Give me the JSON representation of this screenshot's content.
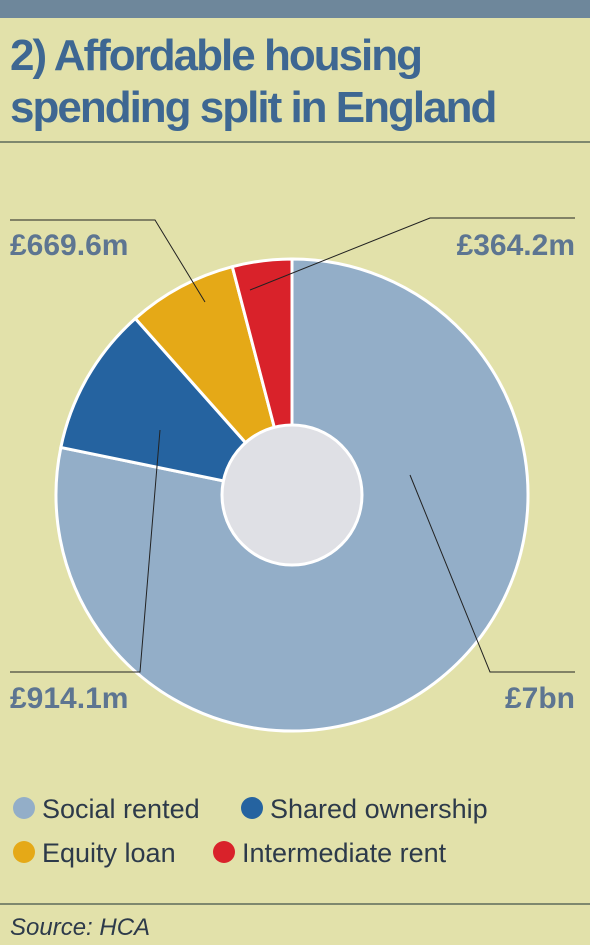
{
  "chart_data": {
    "type": "pie",
    "title": "2) Affordable housing spending split in England",
    "title_lines": [
      "2) Affordable housing",
      "spending split in England"
    ],
    "categories": [
      "Social rented",
      "Shared ownership",
      "Equity loan",
      "Intermediate rent"
    ],
    "values": [
      7000,
      914.1,
      669.6,
      364.2
    ],
    "value_labels": [
      "£7bn",
      "£914.1m",
      "£669.6m",
      "£364.2m"
    ],
    "colors": [
      "#93aec8",
      "#2563a0",
      "#e5a917",
      "#d9222a"
    ],
    "donut": true,
    "source": "Source: HCA"
  }
}
